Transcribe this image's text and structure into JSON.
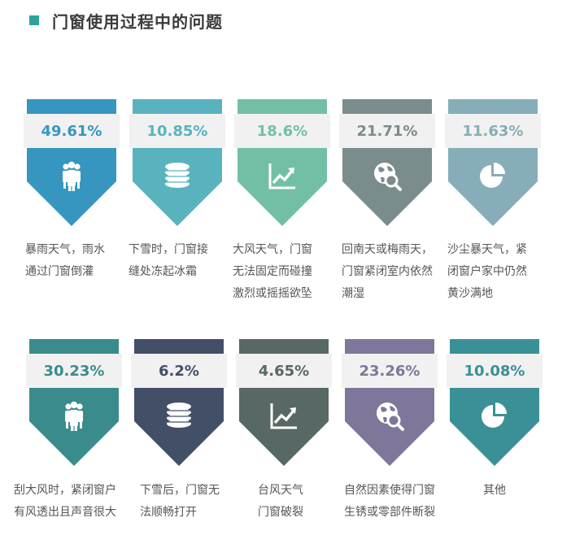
{
  "title": "门窗使用过程中的问题",
  "accent_color": "#2ba39b",
  "chart_data": {
    "type": "bar",
    "unit": "%",
    "items": [
      {
        "value": 49.61,
        "label": "49.61%",
        "caption": "暴雨天气，雨水\n通过门窗倒灌",
        "color": "#3696bf",
        "icon": "people-icon"
      },
      {
        "value": 10.85,
        "label": "10.85%",
        "caption": "下雪时，门窗接\n缝处冻起冰霜",
        "color": "#59b3bf",
        "icon": "coins-icon"
      },
      {
        "value": 18.6,
        "label": "18.6%",
        "caption": "大风天气，门窗\n无法固定而碰撞\n激烈或摇摇欲坠",
        "color": "#73bfa6",
        "icon": "trend-chart-icon"
      },
      {
        "value": 21.71,
        "label": "21.71%",
        "caption": "回南天或梅雨天，\n门窗紧闭室内依然\n潮湿",
        "color": "#7a8c8c",
        "icon": "globe-search-icon"
      },
      {
        "value": 11.63,
        "label": "11.63%",
        "caption": "沙尘暴天气，紧\n闭窗户家中仍然\n黄沙满地",
        "color": "#87aeb8",
        "icon": "pie-chart-icon"
      },
      {
        "value": 30.23,
        "label": "30.23%",
        "caption": "刮大风时，紧闭窗户\n有风透出且声音很大",
        "color": "#3a8c8c",
        "icon": "people-icon"
      },
      {
        "value": 6.2,
        "label": "6.2%",
        "caption": "下雪后，门窗无\n法顺畅打开",
        "color": "#434f66",
        "icon": "coins-icon"
      },
      {
        "value": 4.65,
        "label": "4.65%",
        "caption": "台风天气\n门窗破裂",
        "color": "#586864",
        "icon": "trend-chart-icon"
      },
      {
        "value": 23.26,
        "label": "23.26%",
        "caption": "自然因素使得门窗\n生锈或零部件断裂",
        "color": "#7e7799",
        "icon": "globe-search-icon"
      },
      {
        "value": 10.08,
        "label": "10.08%",
        "caption": "其他",
        "color": "#3a9096",
        "icon": "pie-chart-icon"
      }
    ]
  }
}
